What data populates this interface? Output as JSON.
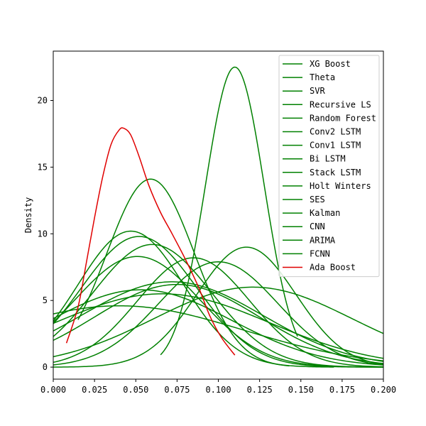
{
  "chart_data": {
    "type": "line",
    "title": "",
    "xlabel": "",
    "ylabel": "Density",
    "xlim": [
      0.0,
      0.2
    ],
    "ylim": [
      -0.9,
      23.7
    ],
    "x_ticks": [
      "0.000",
      "0.025",
      "0.050",
      "0.075",
      "0.100",
      "0.125",
      "0.150",
      "0.175",
      "0.200"
    ],
    "y_ticks": [
      "0",
      "5",
      "10",
      "15",
      "20"
    ],
    "grid": false,
    "legend_position": "top-right",
    "colors": {
      "model": "#008000",
      "highlight": "#e00000"
    },
    "series": [
      {
        "name": "XG Boost",
        "color": "#008000",
        "peak_x": 0.11,
        "peak_y": 22.5,
        "sigma": 0.0178,
        "x_start": 0.065,
        "x_end": 0.148
      },
      {
        "name": "Theta",
        "color": "#008000",
        "peak_x": 0.059,
        "peak_y": 14.1,
        "sigma": 0.0265,
        "x_start": 0.015,
        "x_end": 0.143
      },
      {
        "name": "SVR",
        "color": "#008000",
        "peak_x": 0.047,
        "peak_y": 10.2,
        "sigma": 0.032,
        "x_start": 0.0,
        "x_end": 0.17
      },
      {
        "name": "Recursive LS",
        "color": "#008000",
        "peak_x": 0.052,
        "peak_y": 9.8,
        "sigma": 0.035,
        "x_start": 0.0,
        "x_end": 0.2
      },
      {
        "name": "Random Forest",
        "color": "#008000",
        "peak_x": 0.06,
        "peak_y": 9.2,
        "sigma": 0.036,
        "x_start": 0.0,
        "x_end": 0.2
      },
      {
        "name": "Conv2 LSTM",
        "color": "#008000",
        "peak_x": 0.051,
        "peak_y": 8.3,
        "sigma": 0.038,
        "x_start": 0.0,
        "x_end": 0.2
      },
      {
        "name": "Conv1 LSTM",
        "color": "#008000",
        "peak_x": 0.117,
        "peak_y": 9.0,
        "sigma": 0.03,
        "x_start": 0.0,
        "x_end": 0.2
      },
      {
        "name": "Bi LSTM",
        "color": "#008000",
        "peak_x": 0.085,
        "peak_y": 8.2,
        "sigma": 0.034,
        "x_start": 0.0,
        "x_end": 0.2
      },
      {
        "name": "Stack LSTM",
        "color": "#008000",
        "peak_x": 0.1,
        "peak_y": 7.9,
        "sigma": 0.036,
        "x_start": 0.0,
        "x_end": 0.2
      },
      {
        "name": "Holt Winters",
        "color": "#008000",
        "peak_x": 0.072,
        "peak_y": 6.4,
        "sigma": 0.055,
        "x_start": 0.0,
        "x_end": 0.2
      },
      {
        "name": "SES",
        "color": "#008000",
        "peak_x": 0.121,
        "peak_y": 6.0,
        "sigma": 0.06,
        "x_start": 0.0,
        "x_end": 0.2
      },
      {
        "name": "Kalman",
        "color": "#008000",
        "peak_x": 0.053,
        "peak_y": 5.8,
        "sigma": 0.055,
        "x_start": 0.0,
        "x_end": 0.2
      },
      {
        "name": "CNN",
        "color": "#008000",
        "peak_x": 0.066,
        "peak_y": 5.5,
        "sigma": 0.065,
        "x_start": 0.0,
        "x_end": 0.2
      },
      {
        "name": "ARIMA",
        "color": "#008000",
        "peak_x": 0.04,
        "peak_y": 4.6,
        "sigma": 0.075,
        "x_start": 0.0,
        "x_end": 0.2
      },
      {
        "name": "FCNN",
        "color": "#008000",
        "peak_x": 0.075,
        "peak_y": 6.2,
        "sigma": 0.05,
        "x_start": 0.0,
        "x_end": 0.2
      },
      {
        "name": "Ada Boost",
        "color": "#e00000",
        "x_start": 0.008,
        "x_end": 0.11,
        "points": [
          [
            0.008,
            1.8
          ],
          [
            0.015,
            4.5
          ],
          [
            0.02,
            7.8
          ],
          [
            0.025,
            11.2
          ],
          [
            0.03,
            14.3
          ],
          [
            0.035,
            16.7
          ],
          [
            0.04,
            17.8
          ],
          [
            0.043,
            17.9
          ],
          [
            0.047,
            17.4
          ],
          [
            0.052,
            15.8
          ],
          [
            0.058,
            13.6
          ],
          [
            0.065,
            11.6
          ],
          [
            0.072,
            10.0
          ],
          [
            0.08,
            8.1
          ],
          [
            0.088,
            6.0
          ],
          [
            0.095,
            3.8
          ],
          [
            0.102,
            2.2
          ],
          [
            0.11,
            0.9
          ]
        ]
      }
    ]
  }
}
